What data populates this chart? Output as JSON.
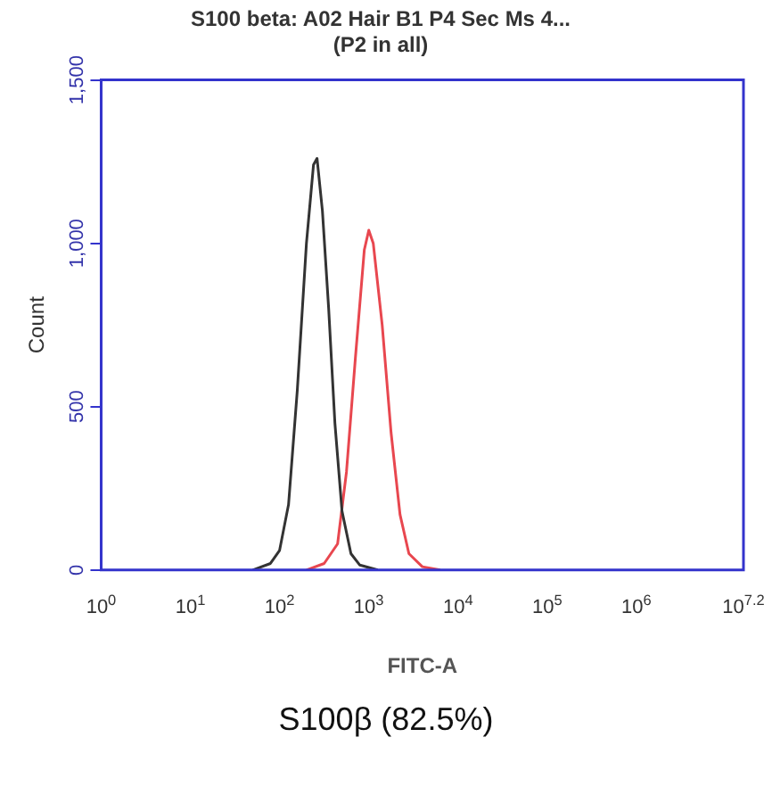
{
  "chart_data": {
    "type": "line",
    "title": "S100 beta: A02 Hair B1 P4 Sec Ms 4...",
    "subtitle": "(P2 in all)",
    "xlabel": "FITC-A",
    "ylabel": "Count",
    "log": "x",
    "xlim": [
      1,
      15848932
    ],
    "xticks": [
      {
        "value": 1,
        "label": "10$^{0}$"
      },
      {
        "value": 10,
        "label": "10$^{1}$"
      },
      {
        "value": 100,
        "label": "10$^{2}$"
      },
      {
        "value": 1000,
        "label": "10$^{3}$"
      },
      {
        "value": 10000,
        "label": "10$^{4}$"
      },
      {
        "value": 100000,
        "label": "10$^{5}$"
      },
      {
        "value": 1000000,
        "label": "10$^{6}$"
      },
      {
        "value": 15848932,
        "label": "10$^{7.2}$"
      }
    ],
    "ylim": [
      0,
      1500
    ],
    "yticks": [
      0,
      500,
      {
        "value": 1000,
        "label": "1,000"
      },
      {
        "value": 1500,
        "label": "1,500"
      }
    ],
    "series": [
      {
        "color": "#333333",
        "x": [
          50,
          79,
          100,
          126,
          158,
          200,
          240,
          263,
          302,
          355,
          417,
          501,
          631,
          794,
          1259
        ],
        "values": [
          0,
          20,
          60,
          200,
          550,
          1000,
          1240,
          1260,
          1100,
          800,
          450,
          180,
          50,
          15,
          0
        ]
      },
      {
        "color": "#e8474f",
        "x": [
          200,
          316,
          447,
          562,
          708,
          891,
          1000,
          1122,
          1413,
          1778,
          2239,
          2818,
          3981,
          6310
        ],
        "values": [
          0,
          20,
          80,
          300,
          650,
          980,
          1040,
          1000,
          750,
          420,
          170,
          50,
          10,
          0
        ]
      }
    ],
    "annotations": [
      "S100β (82.5%)"
    ]
  }
}
